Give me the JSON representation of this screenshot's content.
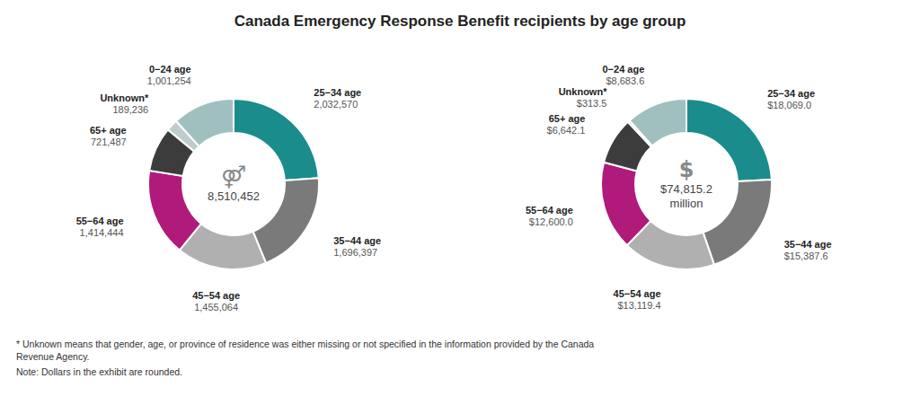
{
  "title": "Canada Emergency Response Benefit recipients by age group",
  "annotations": [
    "* Unknown means that gender, age, or province of residence was either missing or not specified in the information provided by the Canada\nRevenue Agency.",
    "Note: Dollars in the exhibit are rounded."
  ],
  "chart_data": [
    {
      "type": "pie",
      "categories": [
        "25−34 age",
        "35−44 age",
        "45−54 age",
        "55−64 age",
        "65+ age",
        "Unknown*",
        "0−24 age"
      ],
      "values": [
        2032570,
        1696397,
        1455064,
        1414444,
        721487,
        189236,
        1001254
      ],
      "value_labels": [
        "2,032,570",
        "1,696,397",
        "1,455,064",
        "1,414,444",
        "721,487",
        "189,236",
        "1,001,254"
      ],
      "colors": [
        "#1A8C8C",
        "#7A7A7A",
        "#B0B0B0",
        "#B01A7A",
        "#3C3C3C",
        "#C0CCCC",
        "#A0C0C0"
      ],
      "data_labels": true,
      "annotations": [
        "⚤",
        "8,510,452"
      ]
    },
    {
      "type": "pie",
      "categories": [
        "25−34 age",
        "35−44 age",
        "45−54 age",
        "55−64 age",
        "65+ age",
        "Unknown*",
        "0−24 age"
      ],
      "values": [
        18069.0,
        15387.6,
        13119.4,
        12600.0,
        6642.1,
        313.5,
        8683.6
      ],
      "value_labels": [
        "$18,069.0",
        "$15,387.6",
        "$13,119.4",
        "$12,600.0",
        "$6,642.1",
        "$313.5",
        "$8,683.6"
      ],
      "colors": [
        "#1A8C8C",
        "#7A7A7A",
        "#B0B0B0",
        "#B01A7A",
        "#3C3C3C",
        "#C0CCCC",
        "#A0C0C0"
      ],
      "data_labels": true,
      "annotations": [
        "$",
        "$74,815.2",
        "million"
      ]
    }
  ]
}
